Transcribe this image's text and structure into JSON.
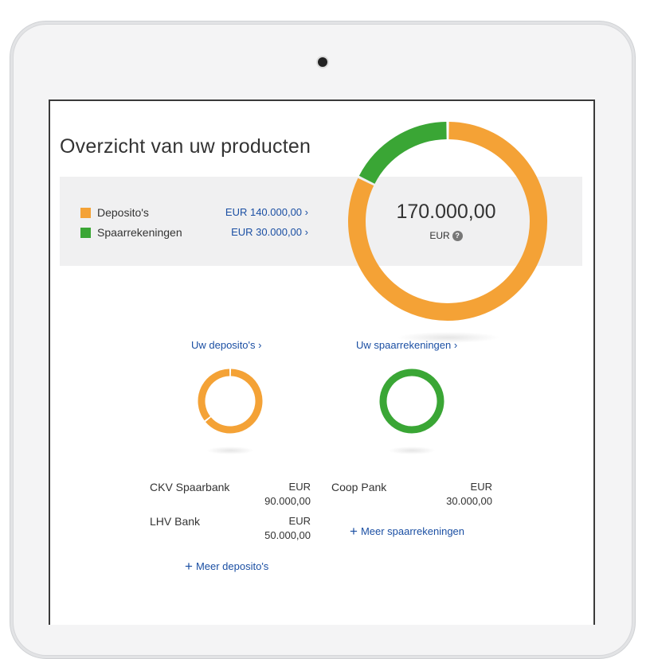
{
  "title": "Overzicht van uw producten",
  "colors": {
    "deposits": "#f4a236",
    "savings": "#3aa635",
    "link": "#1b4fa3"
  },
  "summary": {
    "items": [
      {
        "label": "Deposito's",
        "amount": "EUR 140.000,00"
      },
      {
        "label": "Spaarrekeningen",
        "amount": "EUR 30.000,00"
      }
    ],
    "total": "170.000,00",
    "currency": "EUR",
    "help_icon": "question-circle-icon"
  },
  "chart_data": {
    "type": "pie",
    "categories": [
      "Deposito's",
      "Spaarrekeningen"
    ],
    "values": [
      140000,
      30000
    ]
  },
  "deposits": {
    "link": "Uw deposito's",
    "banks": [
      {
        "name": "CKV Spaarbank",
        "currency": "EUR",
        "amount": "90.000,00",
        "value": 90000
      },
      {
        "name": "LHV Bank",
        "currency": "EUR",
        "amount": "50.000,00",
        "value": 50000
      }
    ],
    "more": "Meer deposito's"
  },
  "savings": {
    "link": "Uw spaarrekeningen",
    "banks": [
      {
        "name": "Coop Pank",
        "currency": "EUR",
        "amount": "30.000,00",
        "value": 30000
      }
    ],
    "more": "Meer spaarrekeningen"
  }
}
